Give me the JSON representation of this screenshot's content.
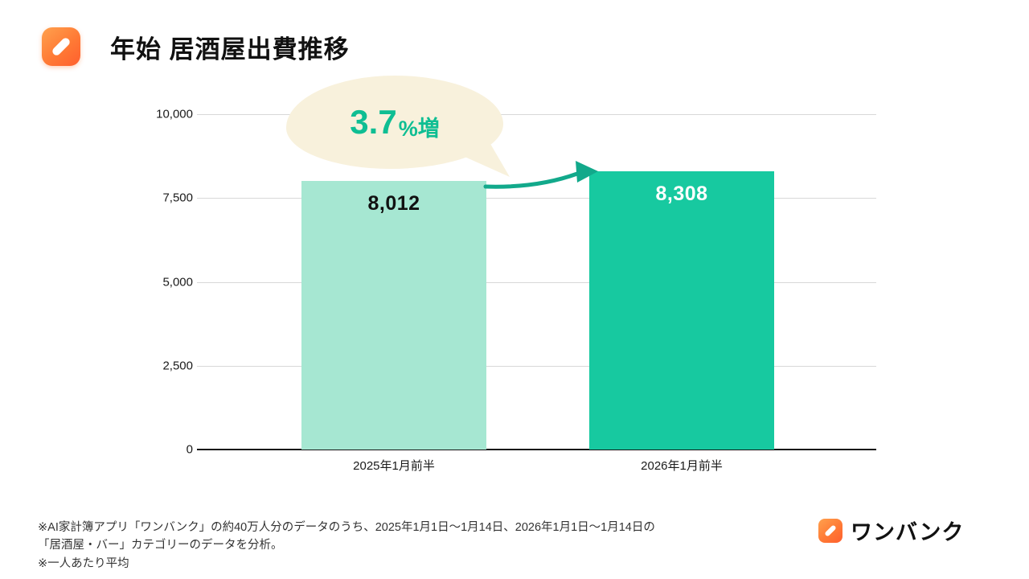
{
  "header": {
    "title": "年始 居酒屋出費推移"
  },
  "chart_data": {
    "type": "bar",
    "title": "年始 居酒屋出費推移",
    "categories": [
      "2025年1月前半",
      "2026年1月前半"
    ],
    "values": [
      8012,
      8308
    ],
    "value_labels": [
      "8,012",
      "8,308"
    ],
    "ylim": [
      0,
      10000
    ],
    "yticks": [
      0,
      2500,
      5000,
      7500,
      10000
    ],
    "ytick_labels": [
      "0",
      "2,500",
      "5,000",
      "7,500",
      "10,000"
    ],
    "grid": true,
    "legend": false,
    "bar_colors": [
      "#A6E7D2",
      "#17C9A0"
    ],
    "annotation": {
      "value": "3.7",
      "unit": "%増",
      "text": "3.7%増"
    }
  },
  "footer": {
    "note_line1": "※AI家計簿アプリ「ワンバンク」の約40万人分のデータのうち、2025年1月1日〜1月14日、2026年1月1日〜1月14日の",
    "note_line2": "「居酒屋・バー」カテゴリーのデータを分析。",
    "note_line3": "※一人あたり平均",
    "brand": "ワンバンク"
  },
  "colors": {
    "accent_teal": "#10BE94",
    "arrow_teal": "#12A98B",
    "bar_light": "#A6E7D2",
    "bar_dark": "#17C9A0",
    "bubble_bg": "#F8F1DC",
    "logo_orange": "#FF7A35"
  }
}
